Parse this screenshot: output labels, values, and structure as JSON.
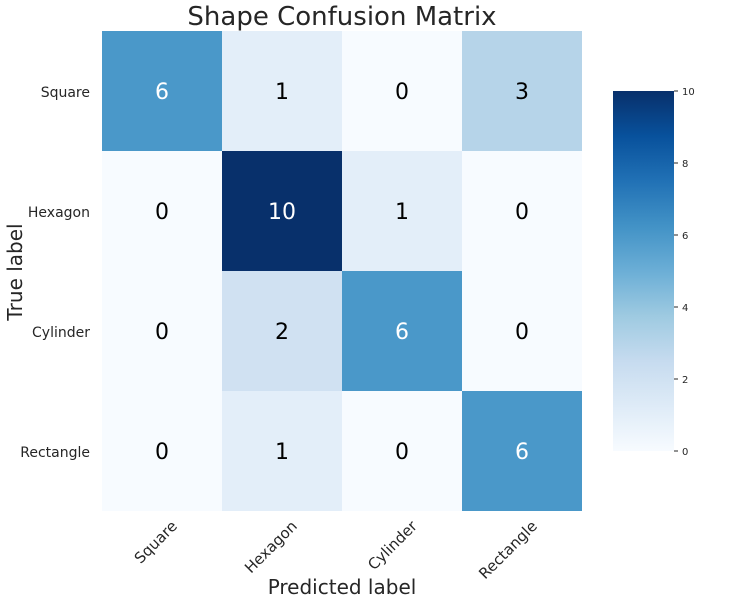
{
  "chart_data": {
    "type": "heatmap",
    "title": "Shape Confusion Matrix",
    "xlabel": "Predicted label",
    "ylabel": "True label",
    "x_categories": [
      "Square",
      "Hexagon",
      "Cylinder",
      "Rectangle"
    ],
    "y_categories": [
      "Square",
      "Hexagon",
      "Cylinder",
      "Rectangle"
    ],
    "values": [
      [
        6,
        1,
        0,
        3
      ],
      [
        0,
        10,
        1,
        0
      ],
      [
        0,
        2,
        6,
        0
      ],
      [
        0,
        1,
        0,
        6
      ]
    ],
    "colorbar": {
      "min": 0,
      "max": 10,
      "ticks": [
        "0",
        "2",
        "4",
        "6",
        "8",
        "10"
      ],
      "colormap": "Blues"
    },
    "colors": {
      "low": "#f7fbff",
      "high": "#08306b",
      "text_dark": "#000000",
      "text_light": "#ffffff"
    }
  }
}
